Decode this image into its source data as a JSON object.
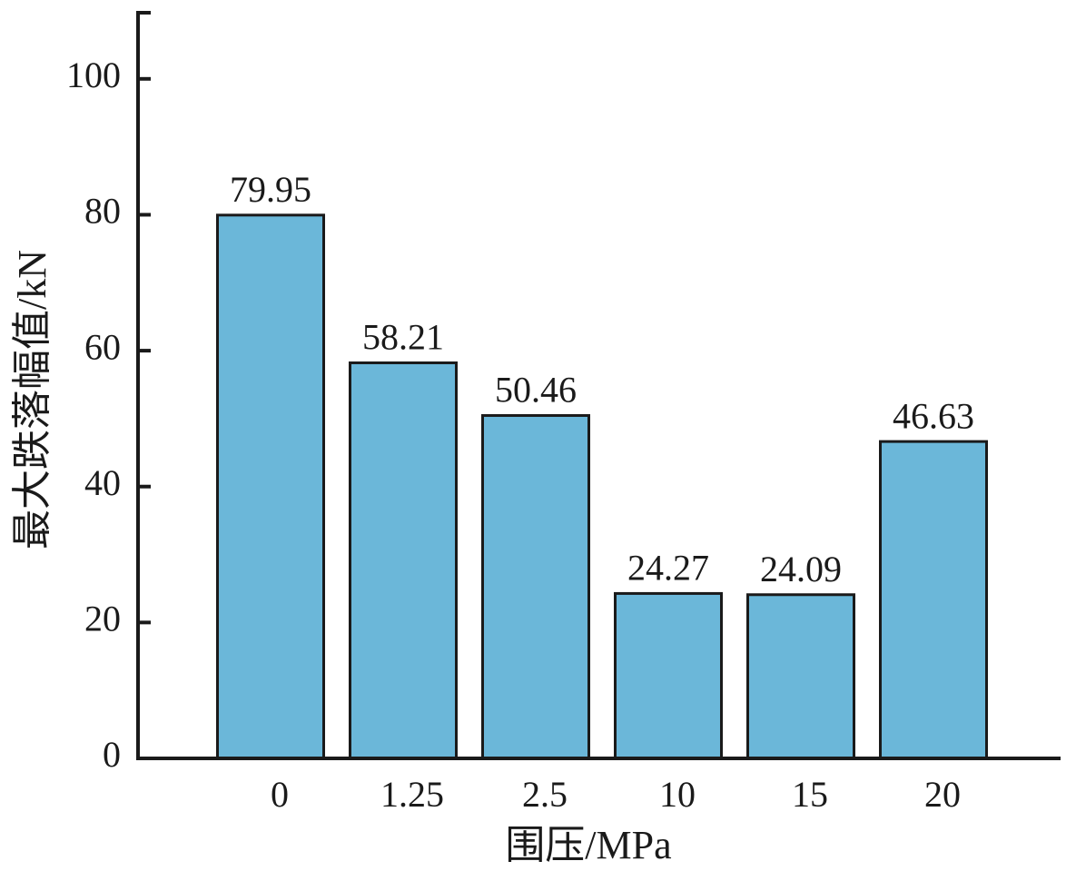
{
  "chart_data": {
    "type": "bar",
    "x_label": "围压/MPa",
    "y_label": "最大跌落幅值/kN",
    "categories": [
      "0",
      "1.25",
      "2.5",
      "10",
      "15",
      "20"
    ],
    "values": [
      79.95,
      58.21,
      50.46,
      24.27,
      24.09,
      46.63
    ],
    "color": "#6bb7d9",
    "ylim": [
      0,
      110
    ],
    "yticks": [
      0,
      20,
      40,
      60,
      80,
      100
    ],
    "grid": false
  }
}
